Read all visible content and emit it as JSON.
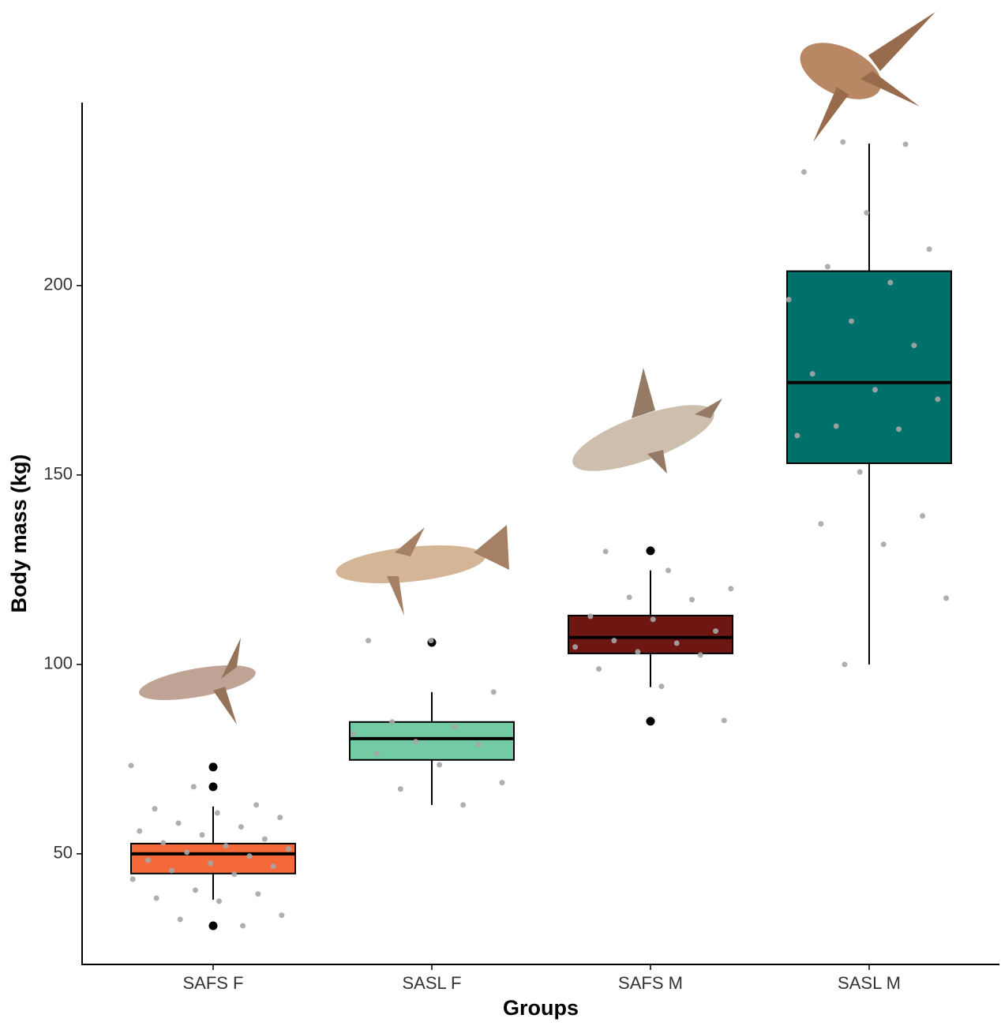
{
  "chart_data": {
    "type": "box",
    "x_label": "Groups",
    "y_label": "Body mass (kg)",
    "categories": [
      "SAFS F",
      "SASL F",
      "SAFS M",
      "SASL M"
    ],
    "colors": [
      "#f4693a",
      "#72cba3",
      "#6e1612",
      "#00706b"
    ],
    "point_color": "#a6a6a6",
    "whisker_low": [
      37.9,
      62.9,
      94.0,
      100
    ],
    "q1": [
      44.8,
      74.8,
      102.9,
      153.1
    ],
    "median": [
      50,
      80.4,
      107.1,
      174.4
    ],
    "q3": [
      52.7,
      84.8,
      112.9,
      203.8
    ],
    "whisker_high": [
      62.5,
      92.7,
      124.8,
      237.5
    ],
    "outliers": [
      [
        72.9,
        67.7,
        31.0
      ],
      [
        105.8
      ],
      [
        130.0,
        85.0
      ],
      []
    ],
    "points": [
      [
        73.3,
        67.7,
        62.9,
        61.9,
        60.8,
        59.6,
        58.1,
        57.1,
        56,
        55,
        53.9,
        52.9,
        52.1,
        51.3,
        50.4,
        49.4,
        48.3,
        47.5,
        46.7,
        45.6,
        44.6,
        43.3,
        40.4,
        39.4,
        38.3,
        37.5,
        33.8,
        32.7,
        31
      ],
      [
        106.3,
        106.3,
        92.7,
        84.8,
        83.5,
        81.7,
        79.6,
        78.8,
        76.5,
        73.5,
        68.8,
        67.1,
        62.9
      ],
      [
        129.8,
        124.8,
        120,
        117.7,
        117.1,
        112.7,
        111.9,
        108.8,
        106.3,
        105.6,
        104.6,
        103.3,
        102.5,
        98.8,
        94.2,
        85.2
      ],
      [
        237.9,
        237.3,
        230,
        219.2,
        209.6,
        205,
        200.8,
        196.3,
        190.6,
        184.2,
        176.7,
        172.5,
        170,
        162.9,
        162.1,
        160.4,
        150.8,
        139.2,
        137.1,
        131.7,
        117.5,
        100
      ]
    ],
    "ylim": [
      20.8,
      248.3
    ],
    "yticks": [
      50,
      100,
      150,
      200
    ]
  }
}
